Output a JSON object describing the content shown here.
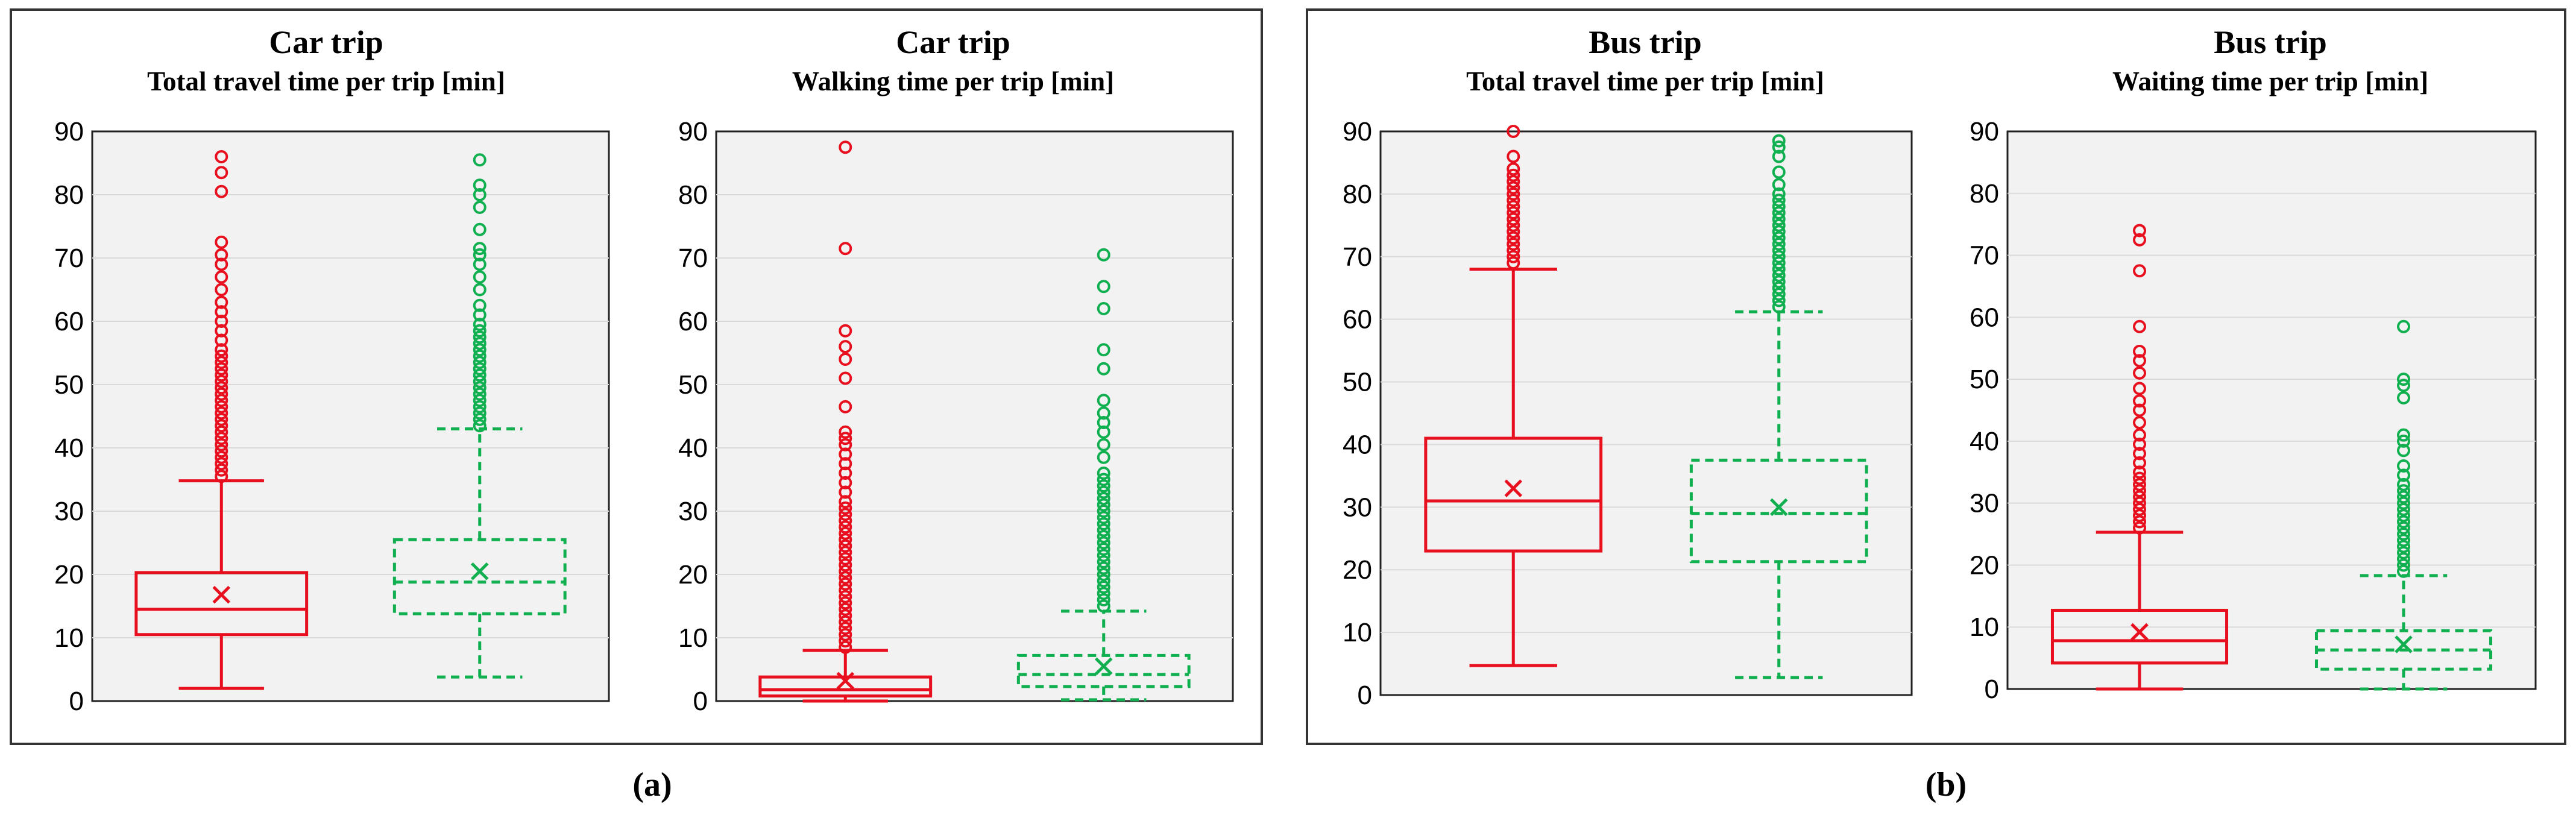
{
  "colors": {
    "series1": "#e8101e",
    "series2": "#10b050",
    "plot_bg": "#f2f2f2",
    "grid": "#d9d9d9"
  },
  "panels": [
    {
      "label": "(a)"
    },
    {
      "label": "(b)"
    }
  ],
  "chart_data": [
    {
      "type": "box",
      "title": "Car trip",
      "subtitle": "Total travel time per trip [min]",
      "ylim": [
        0,
        90
      ],
      "yticks": [
        "0",
        "10",
        "20",
        "30",
        "40",
        "50",
        "60",
        "70",
        "80",
        "90"
      ],
      "boxes": [
        {
          "color": "series1",
          "dashed": false,
          "min": 2,
          "q1": 10.5,
          "median": 14.5,
          "q3": 20.3,
          "whisker_high": 34.8,
          "mean": 16.8,
          "outliers": [
            35.5,
            36.5,
            37.5,
            38.5,
            39.5,
            40.5,
            41.5,
            42.5,
            43.5,
            44.5,
            45.5,
            46.5,
            47.5,
            48.5,
            49.5,
            50.5,
            51.5,
            52.5,
            53.5,
            54.5,
            55.5,
            57,
            58.5,
            60,
            61.5,
            63,
            65,
            67,
            69,
            70.5,
            72.5,
            80.5,
            83.5,
            86
          ]
        },
        {
          "color": "series2",
          "dashed": true,
          "min": 3.8,
          "q1": 13.8,
          "median": 18.8,
          "q3": 25.5,
          "whisker_high": 43,
          "mean": 20.5,
          "outliers": [
            43.5,
            44.5,
            45.5,
            46.5,
            47.5,
            48.5,
            49.5,
            50.5,
            51.5,
            52.5,
            53.5,
            54.5,
            55.5,
            56.5,
            57.5,
            58.5,
            59.5,
            61,
            62.5,
            65,
            67,
            69,
            70.5,
            71.5,
            74.5,
            78,
            80,
            81.5,
            85.5
          ]
        }
      ]
    },
    {
      "type": "box",
      "title": "Car trip",
      "subtitle": "Walking time per trip [min]",
      "ylim": [
        0,
        90
      ],
      "yticks": [
        "0",
        "10",
        "20",
        "30",
        "40",
        "50",
        "60",
        "70",
        "80",
        "90"
      ],
      "boxes": [
        {
          "color": "series1",
          "dashed": false,
          "min": 0,
          "q1": 0.8,
          "median": 1.8,
          "q3": 3.8,
          "whisker_high": 8,
          "mean": 3.2,
          "outliers": [
            8.5,
            9.5,
            10.5,
            11.5,
            12.5,
            13.5,
            14.5,
            15.5,
            16.5,
            17.5,
            18.5,
            19.5,
            20.5,
            21.5,
            22.5,
            23.5,
            24.5,
            25.5,
            26.5,
            27.5,
            28.5,
            29.5,
            30.5,
            31.5,
            33,
            34.5,
            36,
            37.5,
            39,
            40.5,
            41.5,
            42.5,
            46.5,
            51,
            54,
            56,
            58.5,
            71.5,
            87.5
          ]
        },
        {
          "color": "series2",
          "dashed": true,
          "min": 0.2,
          "q1": 2.3,
          "median": 4.2,
          "q3": 7.2,
          "whisker_high": 14.2,
          "mean": 5.5,
          "outliers": [
            15,
            16,
            17,
            18,
            19,
            20,
            21,
            22,
            23,
            24,
            25,
            26,
            27,
            28,
            29,
            30,
            31,
            32,
            33,
            34,
            35,
            36,
            38.5,
            40.5,
            42.5,
            44,
            45.5,
            47.5,
            52.5,
            55.5,
            62,
            65.5,
            70.5
          ]
        }
      ]
    },
    {
      "type": "box",
      "title": "Bus trip",
      "subtitle": "Total travel time per trip [min]",
      "ylim": [
        0,
        90
      ],
      "yticks": [
        "0",
        "10",
        "20",
        "30",
        "40",
        "50",
        "60",
        "70",
        "80",
        "90"
      ],
      "boxes": [
        {
          "color": "series1",
          "dashed": false,
          "min": 4.7,
          "q1": 23,
          "median": 31,
          "q3": 41,
          "whisker_high": 68,
          "mean": 33,
          "outliers": [
            69,
            70,
            71,
            72,
            73,
            74,
            75,
            76,
            77,
            78,
            79,
            80,
            81,
            82,
            83,
            84,
            86,
            90
          ]
        },
        {
          "color": "series2",
          "dashed": true,
          "min": 2.8,
          "q1": 21.3,
          "median": 29,
          "q3": 37.5,
          "whisker_high": 61.2,
          "mean": 30,
          "outliers": [
            62,
            63,
            64,
            65,
            66,
            67,
            68,
            69,
            70,
            71,
            72,
            73,
            74,
            75,
            76,
            77,
            78,
            79,
            80,
            81.5,
            83.5,
            86,
            87.5,
            88.5
          ]
        }
      ]
    },
    {
      "type": "box",
      "title": "Bus trip",
      "subtitle": "Waiting time per trip [min]",
      "ylim": [
        0,
        90
      ],
      "yticks": [
        "0",
        "10",
        "20",
        "30",
        "40",
        "50",
        "60",
        "70",
        "80",
        "90"
      ],
      "boxes": [
        {
          "color": "series1",
          "dashed": false,
          "min": 0,
          "q1": 4.2,
          "median": 7.8,
          "q3": 12.7,
          "whisker_high": 25.3,
          "mean": 9.2,
          "outliers": [
            26,
            27,
            28,
            29,
            30,
            31,
            32,
            33,
            34,
            35,
            36.5,
            38,
            39.5,
            41,
            43,
            45,
            46.5,
            48.5,
            51,
            53,
            54.5,
            58.5,
            67.5,
            72.5,
            74
          ]
        },
        {
          "color": "series2",
          "dashed": true,
          "min": 0,
          "q1": 3.2,
          "median": 6.3,
          "q3": 9.4,
          "whisker_high": 18.3,
          "mean": 7.2,
          "outliers": [
            19,
            20,
            21,
            22,
            23,
            24,
            25,
            26,
            27,
            28,
            29,
            30,
            31,
            32,
            33,
            34.5,
            36,
            38.5,
            40,
            41,
            47,
            49,
            50,
            58.5
          ]
        }
      ]
    }
  ]
}
